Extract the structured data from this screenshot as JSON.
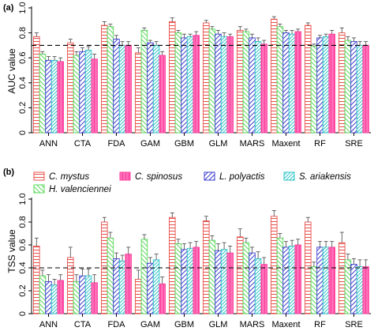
{
  "panel_labels": [
    "(a)",
    "(b)"
  ],
  "legend": {
    "entries": [
      "C. mystus",
      "C. spinosus",
      "L. polyactis",
      "S. ariakensis",
      "H. valenciennei"
    ]
  },
  "colors": {
    "C. mystus": "#e8504a",
    "C. spinosus": "#ff3f9f",
    "L. polyactis": "#3c3cd0",
    "S. ariakensis": "#2ec3c8",
    "H. valenciennei": "#5ad85a"
  },
  "chart_data": [
    {
      "type": "bar",
      "panel": "(a)",
      "title": "",
      "xlabel": "",
      "ylabel": "AUC value",
      "ylim": [
        0,
        1.0
      ],
      "yticks": [
        "0",
        "0.2",
        "0.4",
        "0.6",
        "0.8",
        "1.0"
      ],
      "reference_line": 0.7,
      "categories": [
        "ANN",
        "CTA",
        "FDA",
        "GAM",
        "GBM",
        "GLM",
        "MARS",
        "Maxent",
        "RF",
        "SRE"
      ],
      "series": [
        {
          "name": "C. mystus",
          "values": [
            0.77,
            0.72,
            0.86,
            0.64,
            0.89,
            0.88,
            0.82,
            0.91,
            0.86,
            0.8
          ],
          "errors": [
            0.03,
            0.03,
            0.03,
            0.04,
            0.03,
            0.02,
            0.03,
            0.02,
            0.02,
            0.04
          ]
        },
        {
          "name": "H. valenciennei",
          "values": [
            0.63,
            0.62,
            0.85,
            0.82,
            0.8,
            0.83,
            0.81,
            0.85,
            0.69,
            0.74
          ],
          "errors": [
            0.02,
            0.03,
            0.02,
            0.02,
            0.02,
            0.02,
            0.02,
            0.02,
            0.02,
            0.03
          ]
        },
        {
          "name": "L. polyactis",
          "values": [
            0.58,
            0.65,
            0.75,
            0.72,
            0.76,
            0.79,
            0.76,
            0.8,
            0.76,
            0.73
          ],
          "errors": [
            0.03,
            0.03,
            0.03,
            0.02,
            0.03,
            0.03,
            0.03,
            0.02,
            0.02,
            0.03
          ]
        },
        {
          "name": "S. ariakensis",
          "values": [
            0.58,
            0.66,
            0.7,
            0.7,
            0.77,
            0.77,
            0.73,
            0.79,
            0.77,
            0.7
          ],
          "errors": [
            0.03,
            0.03,
            0.03,
            0.03,
            0.02,
            0.03,
            0.03,
            0.03,
            0.02,
            0.03
          ]
        },
        {
          "name": "C. spinosus",
          "values": [
            0.57,
            0.59,
            0.7,
            0.62,
            0.78,
            0.77,
            0.71,
            0.81,
            0.79,
            0.7
          ],
          "errors": [
            0.03,
            0.04,
            0.03,
            0.03,
            0.03,
            0.02,
            0.03,
            0.02,
            0.03,
            0.03
          ]
        }
      ]
    },
    {
      "type": "bar",
      "panel": "(b)",
      "title": "",
      "xlabel": "",
      "ylabel": "TSS value",
      "ylim": [
        0,
        1.0
      ],
      "yticks": [
        "0",
        "0.2",
        "0.4",
        "0.6",
        "0.8",
        "1.0"
      ],
      "reference_line": 0.4,
      "categories": [
        "ANN",
        "CTA",
        "FDA",
        "GAM",
        "GBM",
        "GLM",
        "MARS",
        "Maxent",
        "RF",
        "SRE"
      ],
      "series": [
        {
          "name": "C. mystus",
          "values": [
            0.59,
            0.49,
            0.8,
            0.3,
            0.84,
            0.81,
            0.67,
            0.85,
            0.8,
            0.62
          ],
          "errors": [
            0.07,
            0.09,
            0.04,
            0.08,
            0.04,
            0.04,
            0.07,
            0.05,
            0.04,
            0.09
          ]
        },
        {
          "name": "H. valenciennei",
          "values": [
            0.33,
            0.28,
            0.66,
            0.65,
            0.61,
            0.64,
            0.62,
            0.66,
            0.41,
            0.47
          ],
          "errors": [
            0.05,
            0.06,
            0.05,
            0.04,
            0.04,
            0.04,
            0.04,
            0.04,
            0.04,
            0.05
          ]
        },
        {
          "name": "L. polyactis",
          "values": [
            0.28,
            0.33,
            0.48,
            0.44,
            0.56,
            0.55,
            0.53,
            0.58,
            0.58,
            0.43
          ],
          "errors": [
            0.06,
            0.06,
            0.05,
            0.05,
            0.05,
            0.06,
            0.05,
            0.05,
            0.05,
            0.05
          ]
        },
        {
          "name": "S. ariakensis",
          "values": [
            0.25,
            0.33,
            0.46,
            0.47,
            0.57,
            0.56,
            0.48,
            0.59,
            0.58,
            0.41
          ],
          "errors": [
            0.05,
            0.06,
            0.05,
            0.05,
            0.05,
            0.06,
            0.06,
            0.05,
            0.05,
            0.06
          ]
        },
        {
          "name": "C. spinosus",
          "values": [
            0.29,
            0.27,
            0.52,
            0.26,
            0.58,
            0.53,
            0.43,
            0.6,
            0.58,
            0.41
          ],
          "errors": [
            0.05,
            0.07,
            0.06,
            0.06,
            0.05,
            0.06,
            0.06,
            0.05,
            0.05,
            0.06
          ]
        }
      ]
    }
  ]
}
